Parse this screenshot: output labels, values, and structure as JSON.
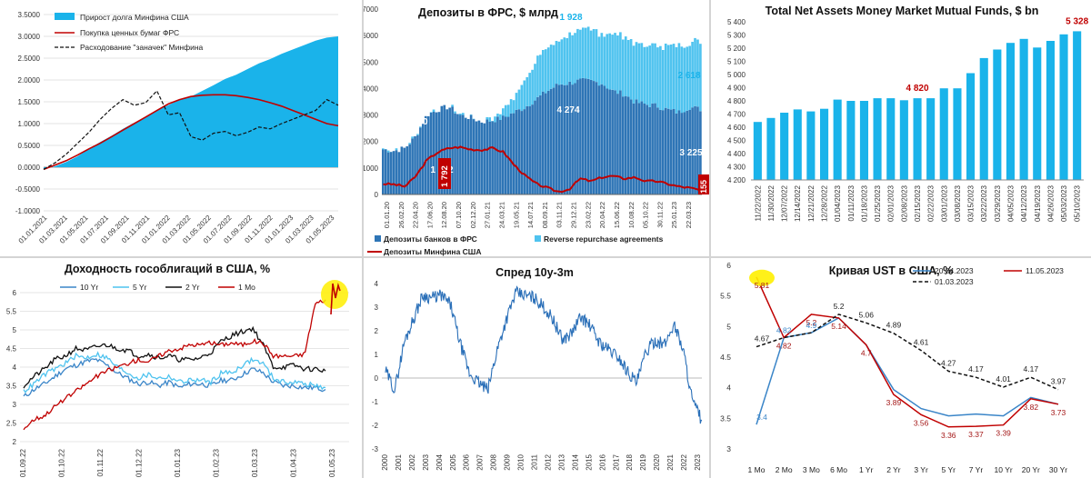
{
  "colors": {
    "blue_fill": "#1ab3ea",
    "dark_blue": "#2e75b6",
    "light_blue": "#4fc3ef",
    "red": "#c00000",
    "dark_red": "#a31515",
    "black": "#000000",
    "highlight": "#ffef00",
    "line_blue": "#3a85c8",
    "spread_blue": "#2a6fb8"
  },
  "chart_data": [
    {
      "id": "p1",
      "type": "area",
      "title": "",
      "yticks": [
        "3.5000",
        "3.0000",
        "2.5000",
        "2.0000",
        "1.5000",
        "1.0000",
        "0.5000",
        "0.0000",
        "-0.5000",
        "-1.0000"
      ],
      "ylim": [
        -1.0,
        3.5
      ],
      "xticks": [
        "01.01.2021",
        "01.03.2021",
        "01.05.2021",
        "01.07.2021",
        "01.09.2021",
        "01.11.2021",
        "01.01.2022",
        "01.03.2022",
        "01.05.2022",
        "01.07.2022",
        "01.09.2022",
        "01.11.2022",
        "01.01.2023",
        "01.03.2023",
        "01.05.2023"
      ],
      "legend": [
        "Прирост долга Минфина США",
        "Покупка ценных бумаг ФРС",
        "Расходование \"заначек\" Минфина"
      ],
      "legend_position": "top-left",
      "series": [
        {
          "name": "Прирост долга Минфина США",
          "style": "area",
          "values": [
            -0.05,
            0.02,
            0.12,
            0.25,
            0.42,
            0.58,
            0.72,
            0.88,
            1.02,
            1.15,
            1.3,
            1.42,
            1.55,
            1.62,
            1.75,
            1.88,
            2.02,
            2.12,
            2.25,
            2.38,
            2.48,
            2.6,
            2.7,
            2.8,
            2.9,
            2.97,
            3.0
          ]
        },
        {
          "name": "Покупка ценных бумаг ФРС",
          "style": "line",
          "values": [
            -0.05,
            0.05,
            0.15,
            0.28,
            0.42,
            0.55,
            0.7,
            0.85,
            1.0,
            1.15,
            1.3,
            1.45,
            1.55,
            1.62,
            1.65,
            1.66,
            1.66,
            1.64,
            1.6,
            1.55,
            1.48,
            1.4,
            1.3,
            1.2,
            1.1,
            1.0,
            0.95
          ]
        },
        {
          "name": "Расходование \"заначек\" Минфина",
          "style": "dashed",
          "values": [
            -0.05,
            0.1,
            0.3,
            0.55,
            0.8,
            1.1,
            1.35,
            1.55,
            1.42,
            1.48,
            1.75,
            1.2,
            1.25,
            0.7,
            0.62,
            0.78,
            0.82,
            0.72,
            0.8,
            0.92,
            0.88,
            1.0,
            1.1,
            1.2,
            1.3,
            1.55,
            1.42
          ]
        }
      ]
    },
    {
      "id": "p2",
      "type": "bar",
      "title": "Депозиты в ФРС, $ млрд",
      "yticks": [
        "7000",
        "6000",
        "5000",
        "4000",
        "3000",
        "2000",
        "1000",
        "0"
      ],
      "ylim": [
        0,
        7000
      ],
      "xticks": [
        "01.01.20",
        "26.02.20",
        "22.04.20",
        "17.06.20",
        "12.08.20",
        "07.10.20",
        "02.12.20",
        "27.01.21",
        "24.03.21",
        "19.05.21",
        "14.07.21",
        "08.09.21",
        "03.11.21",
        "29.12.21",
        "23.02.22",
        "20.04.22",
        "15.06.22",
        "10.08.22",
        "05.10.22",
        "30.11.22",
        "25.01.23",
        "22.03.23"
      ],
      "legend": [
        "Депозиты банков в ФРС",
        "Reverse repurchase agreements",
        "Депозиты Минфина США"
      ],
      "annotations": [
        "3 318",
        "2 660",
        "1 792",
        "1 928",
        "4 274",
        "2 618",
        "3 225",
        "155"
      ],
      "series": [
        {
          "name": "Депозиты банков в ФРС",
          "values": [
            1700,
            1650,
            1750,
            2200,
            3000,
            3200,
            3318,
            3000,
            2900,
            2750,
            2800,
            2900,
            3100,
            3300,
            3600,
            3900,
            4150,
            4200,
            4300,
            4274,
            4200,
            3900,
            3800,
            3500,
            3400,
            3350,
            3200,
            3100,
            3300,
            3225
          ]
        },
        {
          "name": "Reverse repurchase agreements",
          "values": [
            0,
            0,
            0,
            0,
            0,
            0,
            0,
            0,
            0,
            0,
            100,
            300,
            600,
            1100,
            1500,
            1600,
            1650,
            1800,
            1900,
            1928,
            1900,
            2100,
            2200,
            2250,
            2200,
            2300,
            2400,
            2450,
            2500,
            2618
          ]
        },
        {
          "name": "Депозиты Минфина США",
          "values": [
            400,
            380,
            300,
            700,
            1300,
            1600,
            1750,
            1792,
            1700,
            1680,
            1750,
            1600,
            1100,
            700,
            400,
            250,
            100,
            200,
            600,
            500,
            650,
            700,
            600,
            650,
            500,
            500,
            400,
            300,
            250,
            155
          ]
        }
      ]
    },
    {
      "id": "p3",
      "type": "bar",
      "title": "Total Net Assets Money Market Mutual Funds, $ bn",
      "yticks": [
        "5 400",
        "5 300",
        "5 200",
        "5 100",
        "5 000",
        "4 900",
        "4 800",
        "4 700",
        "4 600",
        "4 500",
        "4 400",
        "4 300",
        "4 200"
      ],
      "ylim": [
        4200,
        5400
      ],
      "categories": [
        "11/22/2022",
        "11/30/2022",
        "12/07/2022",
        "12/14/2022",
        "12/21/2022",
        "12/28/2022",
        "01/04/2023",
        "01/11/2023",
        "01/18/2023",
        "01/25/2023",
        "02/01/2023",
        "02/08/2023",
        "02/15/2023",
        "02/22/2023",
        "03/01/2023",
        "03/08/2023",
        "03/15/2023",
        "03/22/2023",
        "03/29/2023",
        "04/05/2023",
        "04/12/2023",
        "04/19/2023",
        "04/26/2023",
        "05/03/2023",
        "05/10/2023"
      ],
      "values": [
        4640,
        4670,
        4710,
        4735,
        4720,
        4740,
        4810,
        4800,
        4800,
        4820,
        4820,
        4805,
        4820,
        4820,
        4895,
        4895,
        5010,
        5125,
        5190,
        5240,
        5270,
        5205,
        5255,
        5305,
        5328
      ],
      "annotations": [
        {
          "label": "4 820",
          "index": 12
        },
        {
          "label": "5 328",
          "index": 24
        }
      ]
    },
    {
      "id": "p4",
      "type": "line",
      "title": "Доходность гособлигаций в США, %",
      "yticks": [
        "6",
        "5.5",
        "5",
        "4.5",
        "4",
        "3.5",
        "3",
        "2.5",
        "2"
      ],
      "ylim": [
        2,
        6
      ],
      "xticks": [
        "01.09.22",
        "01.10.22",
        "01.11.22",
        "01.12.22",
        "01.01.23",
        "01.02.23",
        "01.03.23",
        "01.04.23",
        "01.05.23"
      ],
      "legend": [
        "10 Yr",
        "5 Yr",
        "2 Yr",
        "1 Mo"
      ],
      "legend_position": "top",
      "series": [
        {
          "name": "10 Yr",
          "values": [
            3.2,
            3.4,
            3.55,
            3.75,
            3.95,
            4.05,
            4.15,
            4.2,
            4.05,
            3.85,
            3.7,
            3.55,
            3.6,
            3.5,
            3.6,
            3.45,
            3.55,
            3.55,
            3.5,
            3.65,
            3.65,
            3.8,
            3.95,
            3.85,
            3.6,
            3.5,
            3.5,
            3.45,
            3.45,
            3.4
          ]
        },
        {
          "name": "5 Yr",
          "values": [
            3.35,
            3.55,
            3.8,
            3.95,
            4.1,
            4.3,
            4.25,
            4.35,
            4.25,
            4.0,
            3.85,
            3.7,
            3.8,
            3.7,
            3.75,
            3.6,
            3.65,
            3.65,
            3.6,
            3.85,
            3.85,
            4.05,
            4.2,
            4.1,
            3.7,
            3.6,
            3.6,
            3.55,
            3.5,
            3.45
          ]
        },
        {
          "name": "2 Yr",
          "values": [
            3.5,
            3.75,
            3.95,
            4.2,
            4.3,
            4.5,
            4.45,
            4.55,
            4.6,
            4.5,
            4.45,
            4.3,
            4.35,
            4.25,
            4.3,
            4.2,
            4.2,
            4.25,
            4.4,
            4.7,
            4.85,
            4.95,
            5.05,
            4.6,
            4.0,
            4.0,
            4.05,
            3.95,
            3.95,
            3.9
          ]
        },
        {
          "name": "1 Mo",
          "values": [
            2.35,
            2.6,
            2.7,
            2.95,
            3.15,
            3.35,
            3.55,
            3.75,
            3.9,
            4.0,
            4.1,
            4.2,
            4.15,
            4.3,
            4.45,
            4.5,
            4.6,
            4.6,
            4.65,
            4.6,
            4.65,
            4.6,
            4.7,
            4.65,
            4.3,
            4.3,
            4.3,
            4.35,
            5.7,
            5.81
          ]
        }
      ]
    },
    {
      "id": "p5",
      "type": "line",
      "title": "Спред 10y-3m",
      "yticks": [
        "4",
        "3",
        "2",
        "1",
        "0",
        "-1",
        "-2",
        "-3"
      ],
      "ylim": [
        -3,
        4
      ],
      "xticks": [
        "2000",
        "2001",
        "2002",
        "2003",
        "2004",
        "2005",
        "2006",
        "2007",
        "2008",
        "2009",
        "2010",
        "2011",
        "2012",
        "2013",
        "2014",
        "2015",
        "2016",
        "2017",
        "2018",
        "2019",
        "2020",
        "2021",
        "2022",
        "2023"
      ],
      "series": [
        {
          "name": "",
          "values": [
            0.3,
            -0.5,
            1.5,
            2.5,
            3.5,
            3.4,
            3.5,
            3.1,
            1.5,
            0.2,
            -0.2,
            -0.5,
            1.2,
            2.5,
            3.6,
            3.5,
            3.4,
            3.0,
            2.5,
            1.6,
            1.9,
            2.6,
            2.2,
            1.5,
            1.2,
            0.9,
            0.3,
            -0.2,
            1.1,
            1.6,
            1.4,
            2.3,
            1.2,
            -1.0,
            -1.8
          ]
        }
      ]
    },
    {
      "id": "p6",
      "type": "line",
      "title": "Кривая UST в США, %",
      "yticks": [
        "6",
        "5.5",
        "5",
        "4.5",
        "4",
        "3.5",
        "3"
      ],
      "ylim": [
        3,
        6
      ],
      "categories": [
        "1 Mo",
        "2 Mo",
        "3 Mo",
        "6 Mo",
        "1 Yr",
        "2 Yr",
        "3 Yr",
        "5 Yr",
        "7 Yr",
        "10 Yr",
        "20 Yr",
        "30 Yr"
      ],
      "legend": [
        "20.04.2023",
        "11.05.2023",
        "01.03.2023"
      ],
      "legend_position": "top-right",
      "series": [
        {
          "name": "20.04.2023",
          "style": "line",
          "values": [
            3.4,
            4.82,
            4.9,
            5.14,
            4.7,
            3.97,
            3.66,
            3.54,
            3.57,
            3.54,
            3.84,
            3.73
          ]
        },
        {
          "name": "11.05.2023",
          "style": "line",
          "values": [
            5.81,
            4.82,
            5.2,
            5.14,
            4.7,
            3.89,
            3.56,
            3.36,
            3.37,
            3.39,
            3.82,
            3.73
          ]
        },
        {
          "name": "01.03.2023",
          "style": "dashed",
          "values": [
            4.67,
            4.82,
            4.9,
            5.2,
            5.06,
            4.89,
            4.61,
            4.27,
            4.17,
            4.01,
            4.17,
            3.97
          ]
        }
      ],
      "labels_20_04": [
        "3.4",
        "4.82",
        "4.9"
      ],
      "labels_11_05": [
        "5.81",
        "4.82",
        "5.2",
        "5.14",
        "4.7",
        "3.89",
        "3.56",
        "3.36",
        "3.37",
        "3.39",
        "3.82",
        "3.73"
      ],
      "labels_01_03": [
        "4.67",
        "",
        "",
        "5.2",
        "5.06",
        "4.89",
        "4.61",
        "4.27",
        "4.17",
        "4.01",
        "4.17",
        "3.97"
      ]
    }
  ]
}
